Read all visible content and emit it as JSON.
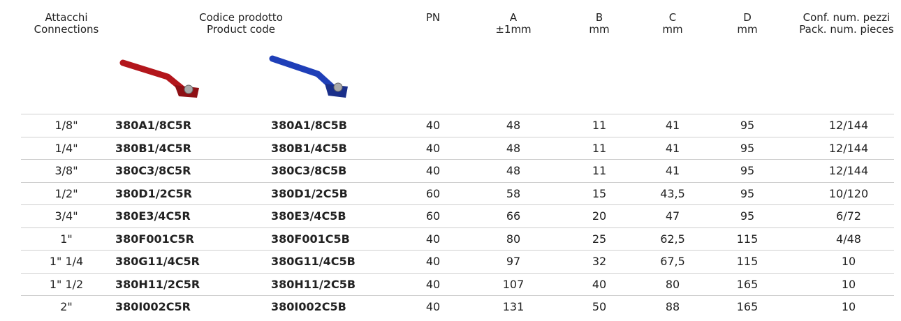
{
  "header": [
    [
      "Attacchi",
      "Connections"
    ],
    [
      "Codice prodotto",
      "Product code"
    ],
    [
      "PN"
    ],
    [
      "A",
      "±1mm"
    ],
    [
      "B",
      "mm"
    ],
    [
      "C",
      "mm"
    ],
    [
      "D",
      "mm"
    ],
    [
      "Conf. num. pezzi",
      "Pack. num. pieces"
    ]
  ],
  "rows": [
    [
      "1/8\"",
      "380A1/8C5R",
      "380A1/8C5B",
      "40",
      "48",
      "11",
      "41",
      "95",
      "12/144"
    ],
    [
      "1/4\"",
      "380B1/4C5R",
      "380B1/4C5B",
      "40",
      "48",
      "11",
      "41",
      "95",
      "12/144"
    ],
    [
      "3/8\"",
      "380C3/8C5R",
      "380C3/8C5B",
      "40",
      "48",
      "11",
      "41",
      "95",
      "12/144"
    ],
    [
      "1/2\"",
      "380D1/2C5R",
      "380D1/2C5B",
      "60",
      "58",
      "15",
      "43,5",
      "95",
      "10/120"
    ],
    [
      "3/4\"",
      "380E3/4C5R",
      "380E3/4C5B",
      "60",
      "66",
      "20",
      "47",
      "95",
      "6/72"
    ],
    [
      "1\"",
      "380F001C5R",
      "380F001C5B",
      "40",
      "80",
      "25",
      "62,5",
      "115",
      "4/48"
    ],
    [
      "1\" 1/4",
      "380G11/4C5R",
      "380G11/4C5B",
      "40",
      "97",
      "32",
      "67,5",
      "115",
      "10"
    ],
    [
      "1\" 1/2",
      "380H11/2C5R",
      "380H11/2C5B",
      "40",
      "107",
      "40",
      "80",
      "165",
      "10"
    ],
    [
      "2\"",
      "380I002C5R",
      "380I002C5B",
      "40",
      "131",
      "50",
      "88",
      "165",
      "10"
    ]
  ]
}
